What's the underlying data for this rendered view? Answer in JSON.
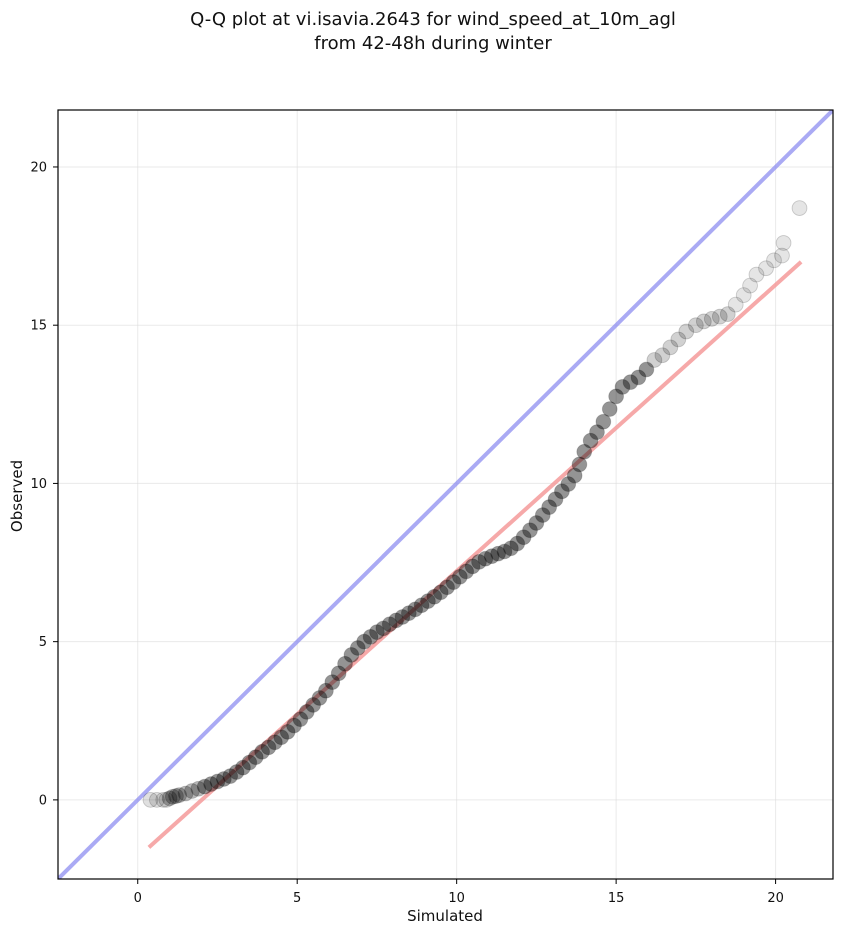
{
  "chart_data": {
    "type": "scatter",
    "title_line1": "Q-Q plot at vi.isavia.2643 for wind_speed_at_10m_agl",
    "title_line2": "from 42-48h during winter",
    "xlabel": "Simulated",
    "ylabel": "Observed",
    "xlim": [
      -2.5,
      21.8
    ],
    "ylim": [
      -2.5,
      21.8
    ],
    "xticks": [
      0,
      5,
      10,
      15,
      20
    ],
    "yticks": [
      0,
      5,
      10,
      15,
      20
    ],
    "grid": true,
    "reference_line": {
      "name": "1:1",
      "color": "#8e8ef0",
      "points": [
        [
          -2.5,
          -2.5
        ],
        [
          21.8,
          21.8
        ]
      ]
    },
    "fit_line": {
      "color": "#f59a9a",
      "points": [
        [
          0.35,
          -1.5
        ],
        [
          20.8,
          17.0
        ]
      ]
    },
    "points_color": "#000000",
    "points": [
      [
        0.4,
        0.0
      ],
      [
        0.6,
        0.0
      ],
      [
        0.8,
        0.0
      ],
      [
        0.9,
        0.0
      ],
      [
        1.0,
        0.05
      ],
      [
        1.1,
        0.1
      ],
      [
        1.2,
        0.12
      ],
      [
        1.3,
        0.15
      ],
      [
        1.5,
        0.2
      ],
      [
        1.7,
        0.28
      ],
      [
        1.9,
        0.35
      ],
      [
        2.1,
        0.42
      ],
      [
        2.3,
        0.5
      ],
      [
        2.5,
        0.58
      ],
      [
        2.7,
        0.66
      ],
      [
        2.9,
        0.75
      ],
      [
        3.1,
        0.88
      ],
      [
        3.3,
        1.02
      ],
      [
        3.5,
        1.18
      ],
      [
        3.7,
        1.35
      ],
      [
        3.9,
        1.52
      ],
      [
        4.1,
        1.66
      ],
      [
        4.3,
        1.82
      ],
      [
        4.5,
        1.98
      ],
      [
        4.7,
        2.15
      ],
      [
        4.9,
        2.35
      ],
      [
        5.1,
        2.55
      ],
      [
        5.3,
        2.78
      ],
      [
        5.5,
        3.0
      ],
      [
        5.7,
        3.22
      ],
      [
        5.9,
        3.45
      ],
      [
        6.1,
        3.72
      ],
      [
        6.3,
        4.0
      ],
      [
        6.5,
        4.3
      ],
      [
        6.7,
        4.58
      ],
      [
        6.9,
        4.8
      ],
      [
        7.1,
        5.0
      ],
      [
        7.3,
        5.15
      ],
      [
        7.5,
        5.3
      ],
      [
        7.7,
        5.42
      ],
      [
        7.9,
        5.55
      ],
      [
        8.1,
        5.67
      ],
      [
        8.3,
        5.78
      ],
      [
        8.5,
        5.9
      ],
      [
        8.7,
        6.02
      ],
      [
        8.9,
        6.15
      ],
      [
        9.1,
        6.28
      ],
      [
        9.3,
        6.42
      ],
      [
        9.5,
        6.56
      ],
      [
        9.7,
        6.72
      ],
      [
        9.9,
        6.88
      ],
      [
        10.1,
        7.05
      ],
      [
        10.3,
        7.22
      ],
      [
        10.5,
        7.38
      ],
      [
        10.7,
        7.52
      ],
      [
        10.9,
        7.62
      ],
      [
        11.1,
        7.7
      ],
      [
        11.3,
        7.78
      ],
      [
        11.5,
        7.85
      ],
      [
        11.7,
        7.95
      ],
      [
        11.9,
        8.1
      ],
      [
        12.1,
        8.3
      ],
      [
        12.3,
        8.52
      ],
      [
        12.5,
        8.75
      ],
      [
        12.7,
        9.0
      ],
      [
        12.9,
        9.25
      ],
      [
        13.1,
        9.5
      ],
      [
        13.3,
        9.75
      ],
      [
        13.5,
        9.98
      ],
      [
        13.7,
        10.25
      ],
      [
        13.85,
        10.6
      ],
      [
        14.0,
        11.0
      ],
      [
        14.2,
        11.35
      ],
      [
        14.4,
        11.62
      ],
      [
        14.6,
        11.95
      ],
      [
        14.8,
        12.35
      ],
      [
        15.0,
        12.75
      ],
      [
        15.2,
        13.05
      ],
      [
        15.45,
        13.2
      ],
      [
        15.7,
        13.35
      ],
      [
        15.95,
        13.6
      ],
      [
        16.2,
        13.9
      ],
      [
        16.45,
        14.05
      ],
      [
        16.7,
        14.3
      ],
      [
        16.95,
        14.55
      ],
      [
        17.2,
        14.8
      ],
      [
        17.5,
        15.0
      ],
      [
        17.75,
        15.12
      ],
      [
        18.0,
        15.2
      ],
      [
        18.25,
        15.27
      ],
      [
        18.5,
        15.35
      ],
      [
        18.75,
        15.65
      ],
      [
        19.0,
        15.95
      ],
      [
        19.2,
        16.25
      ],
      [
        19.4,
        16.6
      ],
      [
        19.7,
        16.8
      ],
      [
        19.95,
        17.05
      ],
      [
        20.2,
        17.2
      ],
      [
        20.25,
        17.6
      ],
      [
        20.75,
        18.7
      ]
    ]
  }
}
